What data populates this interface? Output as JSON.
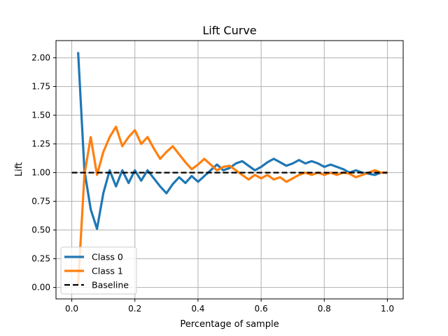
{
  "chart_data": {
    "type": "line",
    "title": "Lift Curve",
    "xlabel": "Percentage of sample",
    "ylabel": "Lift",
    "xlim": [
      -0.05,
      1.05
    ],
    "ylim": [
      -0.1,
      2.15
    ],
    "xticks": [
      0.0,
      0.2,
      0.4,
      0.6,
      0.8,
      1.0
    ],
    "xtick_labels": [
      "0.0",
      "0.2",
      "0.4",
      "0.6",
      "0.8",
      "1.0"
    ],
    "yticks": [
      0.0,
      0.25,
      0.5,
      0.75,
      1.0,
      1.25,
      1.5,
      1.75,
      2.0
    ],
    "ytick_labels": [
      "0.00",
      "0.25",
      "0.50",
      "0.75",
      "1.00",
      "1.25",
      "1.50",
      "1.75",
      "2.00"
    ],
    "grid": true,
    "legend_position": "lower left",
    "series": [
      {
        "name": "Class 0",
        "color": "#1f77b4",
        "style": "solid",
        "x": [
          0.02,
          0.04,
          0.06,
          0.08,
          0.1,
          0.12,
          0.14,
          0.16,
          0.18,
          0.2,
          0.22,
          0.24,
          0.26,
          0.28,
          0.3,
          0.32,
          0.34,
          0.36,
          0.38,
          0.4,
          0.42,
          0.44,
          0.46,
          0.48,
          0.5,
          0.52,
          0.54,
          0.56,
          0.58,
          0.6,
          0.62,
          0.64,
          0.66,
          0.68,
          0.7,
          0.72,
          0.74,
          0.76,
          0.78,
          0.8,
          0.82,
          0.84,
          0.86,
          0.88,
          0.9,
          0.92,
          0.94,
          0.96,
          0.98,
          1.0
        ],
        "y": [
          2.05,
          1.02,
          0.68,
          0.51,
          0.82,
          1.02,
          0.88,
          1.02,
          0.91,
          1.02,
          0.93,
          1.02,
          0.95,
          0.88,
          0.82,
          0.9,
          0.96,
          0.91,
          0.97,
          0.92,
          0.97,
          1.02,
          1.07,
          1.02,
          1.04,
          1.08,
          1.1,
          1.06,
          1.02,
          1.05,
          1.09,
          1.12,
          1.09,
          1.06,
          1.08,
          1.11,
          1.08,
          1.1,
          1.08,
          1.05,
          1.07,
          1.05,
          1.03,
          1.0,
          1.02,
          1.0,
          0.99,
          0.98,
          1.0,
          1.0
        ]
      },
      {
        "name": "Class 1",
        "color": "#ff7f0e",
        "style": "solid",
        "x": [
          0.02,
          0.04,
          0.06,
          0.08,
          0.1,
          0.12,
          0.14,
          0.16,
          0.18,
          0.2,
          0.22,
          0.24,
          0.26,
          0.28,
          0.3,
          0.32,
          0.34,
          0.36,
          0.38,
          0.4,
          0.42,
          0.44,
          0.46,
          0.48,
          0.5,
          0.52,
          0.54,
          0.56,
          0.58,
          0.6,
          0.62,
          0.64,
          0.66,
          0.68,
          0.7,
          0.72,
          0.74,
          0.76,
          0.78,
          0.8,
          0.82,
          0.84,
          0.86,
          0.88,
          0.9,
          0.92,
          0.94,
          0.96,
          0.98,
          1.0
        ],
        "y": [
          0.02,
          0.98,
          1.31,
          0.98,
          1.18,
          1.31,
          1.4,
          1.23,
          1.31,
          1.37,
          1.25,
          1.31,
          1.21,
          1.12,
          1.18,
          1.23,
          1.16,
          1.09,
          1.03,
          1.07,
          1.12,
          1.07,
          1.02,
          1.05,
          1.06,
          1.02,
          0.98,
          0.94,
          0.98,
          0.95,
          0.98,
          0.94,
          0.96,
          0.92,
          0.95,
          0.98,
          1.0,
          0.98,
          1.0,
          0.98,
          1.0,
          0.98,
          1.0,
          0.99,
          0.96,
          0.98,
          1.0,
          1.02,
          1.0,
          1.0
        ]
      },
      {
        "name": "Baseline",
        "color": "#000000",
        "style": "dashed",
        "x": [
          0.0,
          1.0
        ],
        "y": [
          1.0,
          1.0
        ]
      }
    ]
  }
}
